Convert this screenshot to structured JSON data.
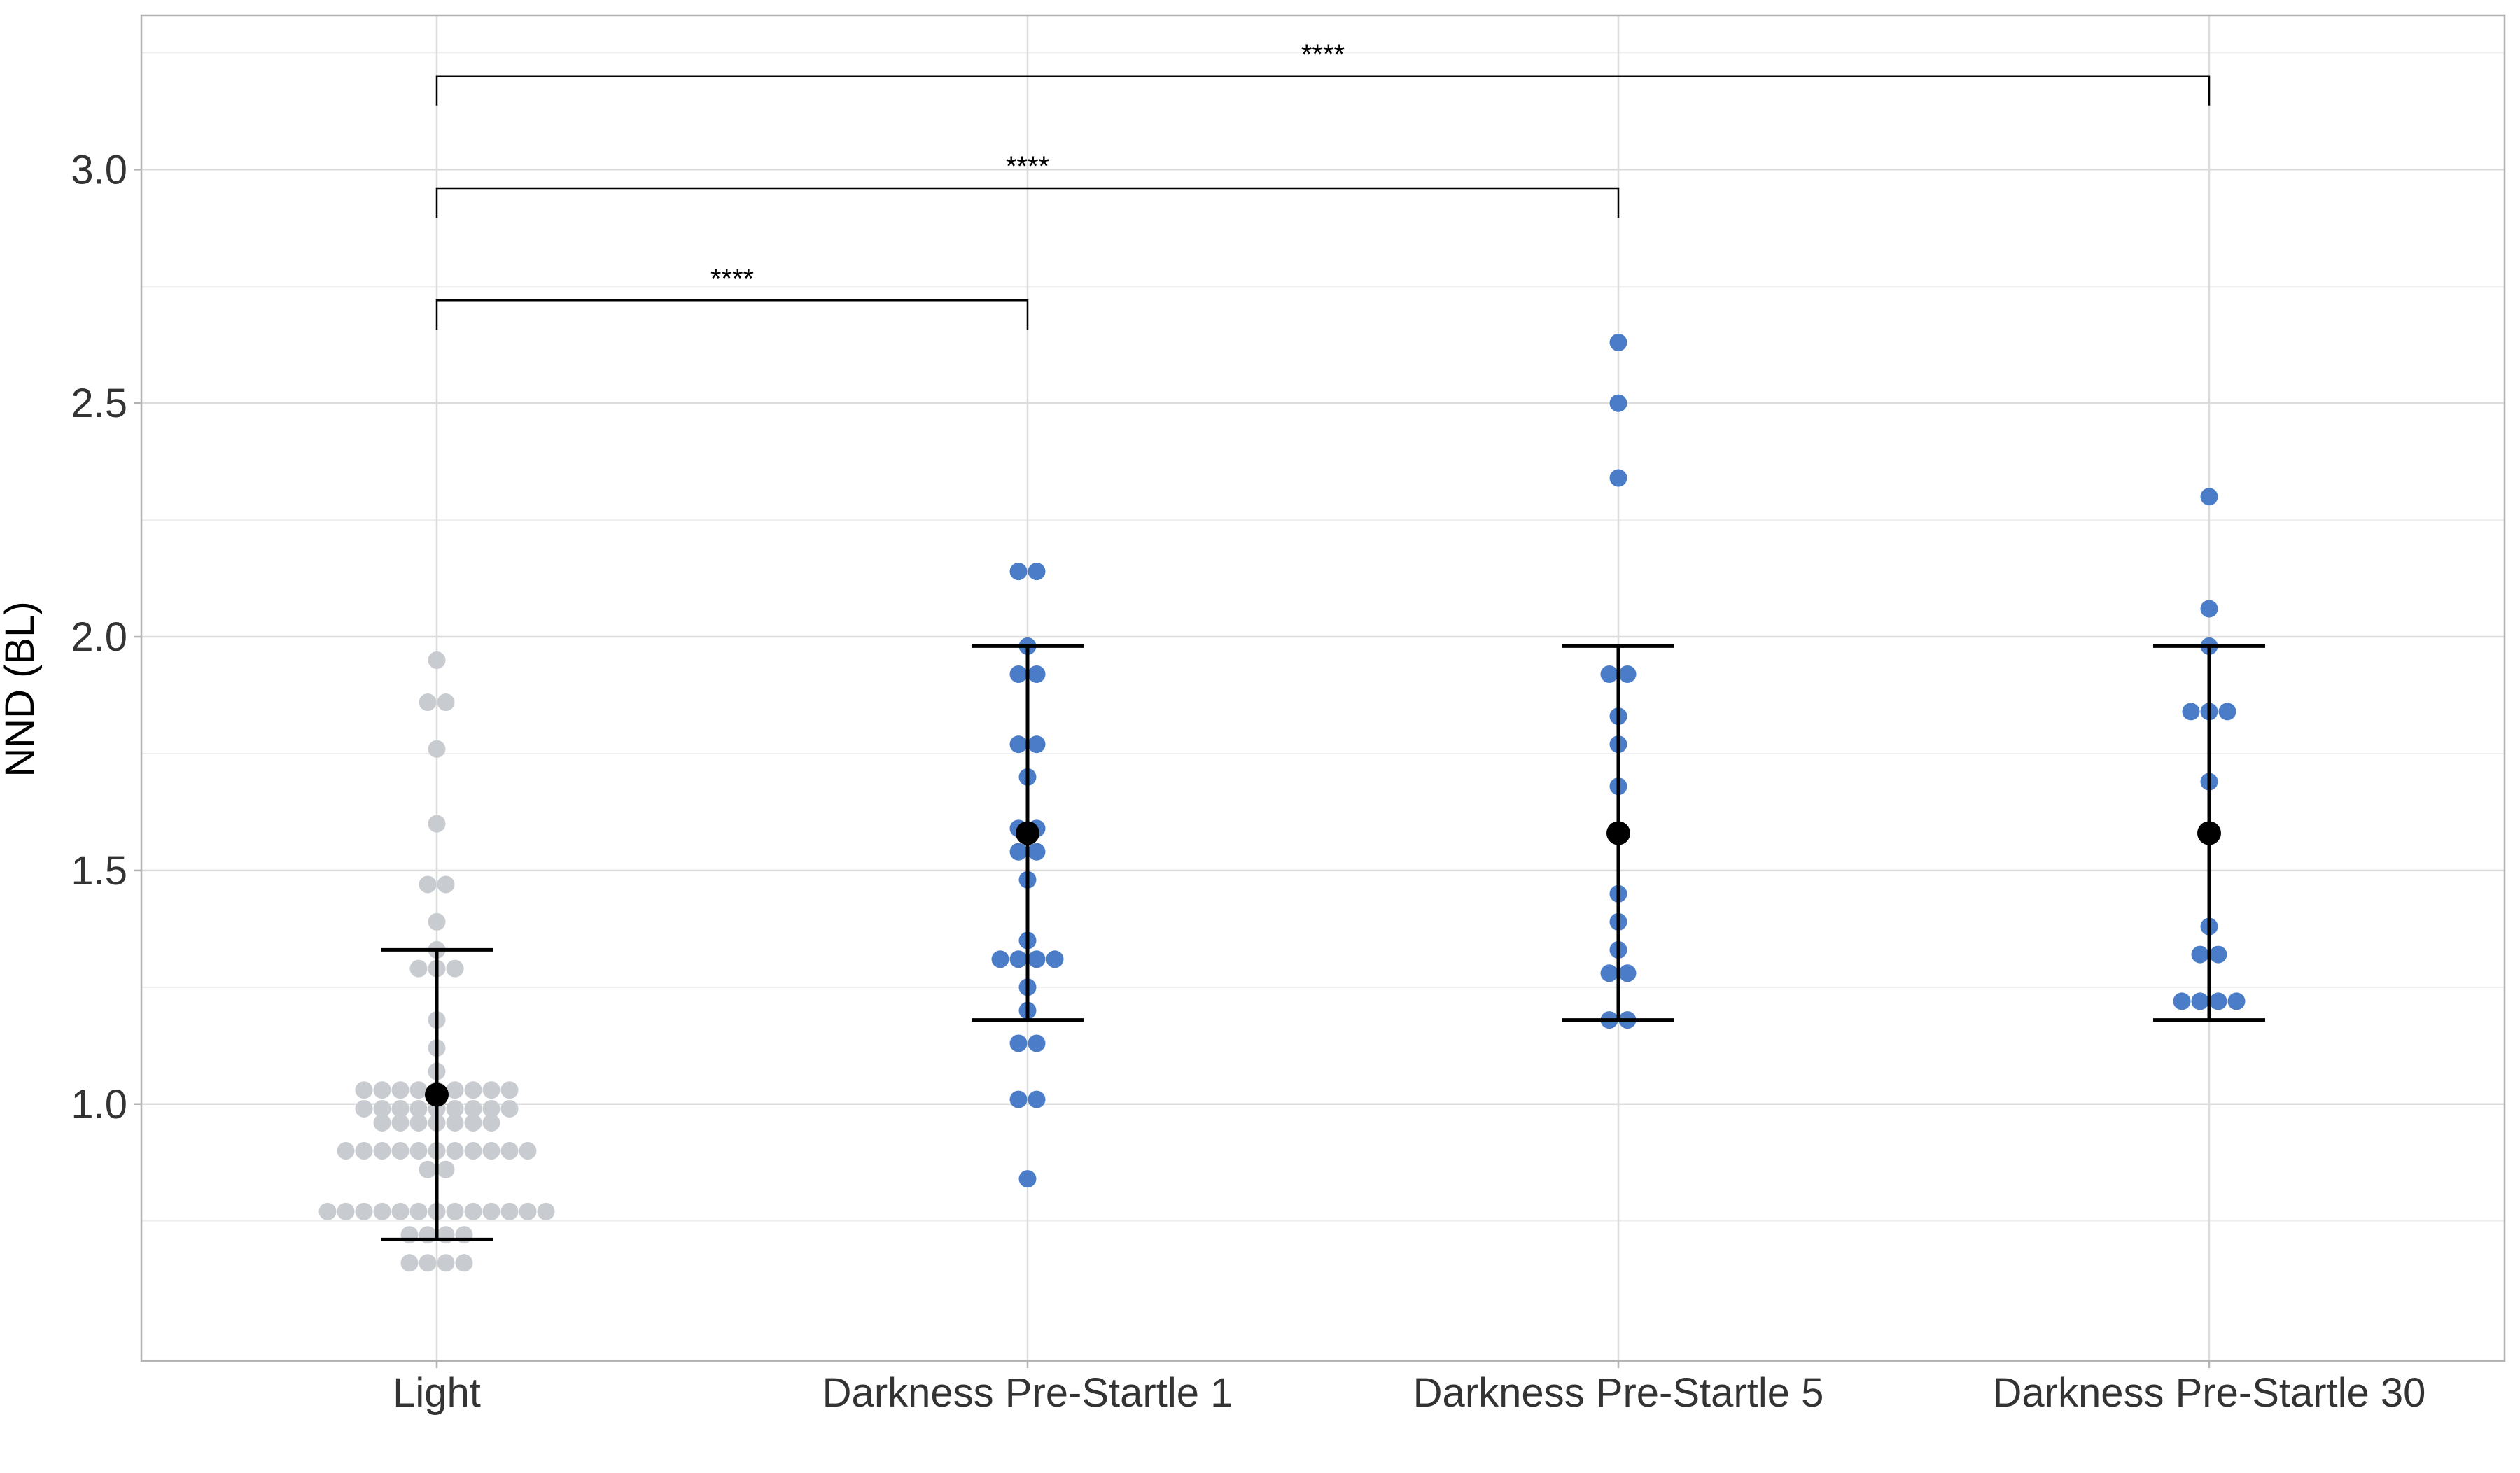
{
  "chart_data": {
    "type": "scatter",
    "subtype": "dot plot with mean and standard deviation error bars",
    "title": "",
    "xlabel": "",
    "ylabel": "NND (BL)",
    "ylim": [
      0.45,
      3.33
    ],
    "yticks": [
      "1.0",
      "1.5",
      "2.0",
      "2.5",
      "3.0"
    ],
    "grid": true,
    "legend": "none",
    "categories": [
      "Light",
      "Darkness Pre-Startle 1",
      "Darkness Pre-Startle 5",
      "Darkness Pre-Startle 30"
    ],
    "colors": {
      "Light": "#c8cbd0",
      "Darkness": "#4a7cc8",
      "summary": "#000000"
    },
    "series": [
      {
        "category": "Light",
        "points": [
          1.95,
          1.86,
          1.86,
          1.76,
          1.6,
          1.47,
          1.47,
          1.39,
          1.33,
          1.29,
          1.29,
          1.29,
          1.18,
          1.12,
          1.07,
          1.03,
          1.03,
          1.03,
          1.03,
          1.03,
          1.03,
          1.03,
          1.03,
          1.03,
          0.99,
          0.99,
          0.99,
          0.99,
          0.99,
          0.99,
          0.99,
          0.99,
          0.99,
          0.96,
          0.96,
          0.96,
          0.96,
          0.96,
          0.96,
          0.96,
          0.9,
          0.9,
          0.9,
          0.9,
          0.9,
          0.9,
          0.9,
          0.9,
          0.9,
          0.9,
          0.9,
          0.86,
          0.86,
          0.77,
          0.77,
          0.77,
          0.77,
          0.77,
          0.77,
          0.77,
          0.77,
          0.77,
          0.77,
          0.77,
          0.77,
          0.77,
          0.72,
          0.72,
          0.72,
          0.72,
          0.66,
          0.66,
          0.66,
          0.66
        ],
        "mean": 1.02,
        "sd_low": 0.71,
        "sd_high": 1.33
      },
      {
        "category": "Darkness Pre-Startle 1",
        "points": [
          2.14,
          2.14,
          1.98,
          1.92,
          1.92,
          1.77,
          1.77,
          1.7,
          1.59,
          1.59,
          1.54,
          1.54,
          1.48,
          1.35,
          1.31,
          1.31,
          1.31,
          1.31,
          1.25,
          1.2,
          1.13,
          1.13,
          1.01,
          1.01,
          0.84
        ],
        "mean": 1.58,
        "sd_low": 1.18,
        "sd_high": 1.98
      },
      {
        "category": "Darkness Pre-Startle 5",
        "points": [
          2.63,
          2.5,
          2.34,
          1.92,
          1.92,
          1.83,
          1.77,
          1.68,
          1.45,
          1.39,
          1.33,
          1.28,
          1.28,
          1.18,
          1.18
        ],
        "mean": 1.58,
        "sd_low": 1.18,
        "sd_high": 1.98
      },
      {
        "category": "Darkness Pre-Startle 30",
        "points": [
          2.3,
          2.06,
          1.98,
          1.84,
          1.84,
          1.84,
          1.69,
          1.38,
          1.32,
          1.32,
          1.22,
          1.22,
          1.22,
          1.22
        ],
        "mean": 1.58,
        "sd_low": 1.18,
        "sd_high": 1.98
      }
    ],
    "annotations": [
      {
        "from": "Light",
        "to": "Darkness Pre-Startle 1",
        "label": "****",
        "y": 2.72
      },
      {
        "from": "Light",
        "to": "Darkness Pre-Startle 5",
        "label": "****",
        "y": 2.96
      },
      {
        "from": "Light",
        "to": "Darkness Pre-Startle 30",
        "label": "****",
        "y": 3.2
      }
    ]
  }
}
